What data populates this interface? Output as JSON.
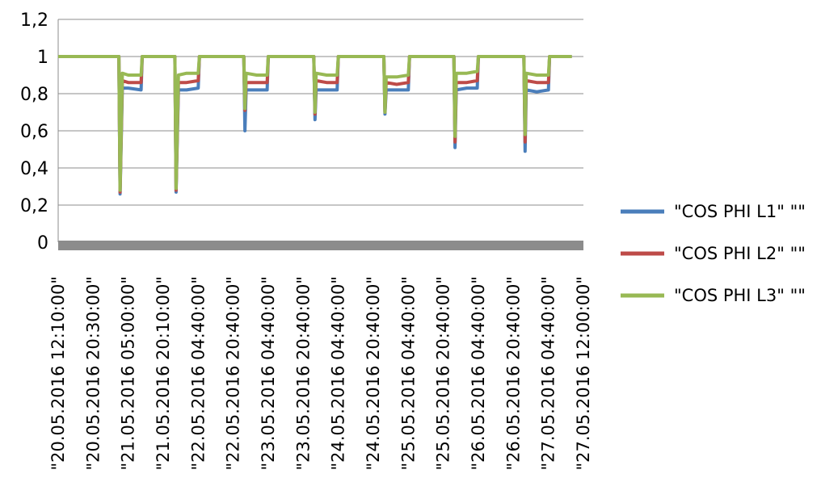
{
  "chart_data": {
    "type": "line",
    "title": "",
    "xlabel": "",
    "ylabel": "",
    "ylim": [
      0,
      1.2
    ],
    "yticks": [
      {
        "value": 0,
        "label": "0"
      },
      {
        "value": 0.2,
        "label": "0,2"
      },
      {
        "value": 0.4,
        "label": "0,4"
      },
      {
        "value": 0.6,
        "label": "0,6"
      },
      {
        "value": 0.8,
        "label": "0,8"
      },
      {
        "value": 1.0,
        "label": "1"
      },
      {
        "value": 1.2,
        "label": "1,2"
      }
    ],
    "x_tick_labels": [
      "\"20.05.2016 12:10:00\"",
      "\"20.05.2016 20:30:00\"",
      "\"21.05.2016 05:00:00\"",
      "\"21.05.2016 20:10:00\"",
      "\"22.05.2016 04:40:00\"",
      "\"22.05.2016 20:40:00\"",
      "\"23.05.2016 04:40:00\"",
      "\"23.05.2016 20:40:00\"",
      "\"24.05.2016 04:40:00\"",
      "\"24.05.2016 20:40:00\"",
      "\"25.05.2016 04:40:00\"",
      "\"25.05.2016 20:40:00\"",
      "\"26.05.2016 04:40:00\"",
      "\"26.05.2016 20:40:00\"",
      "\"27.05.2016 04:40:00\"",
      "\"27.05.2016 12:00:00\""
    ],
    "grid": true,
    "legend_position": "right",
    "series": [
      {
        "name": "\"COS PHI L1\" \"\"",
        "color": "#4a7ebb",
        "points": [
          [
            0,
            1
          ],
          [
            2.6,
            1
          ],
          [
            2.65,
            0.26
          ],
          [
            2.75,
            0.83
          ],
          [
            3.0,
            0.83
          ],
          [
            3.55,
            0.82
          ],
          [
            3.6,
            1
          ],
          [
            5.0,
            1
          ],
          [
            5.05,
            0.27
          ],
          [
            5.15,
            0.82
          ],
          [
            5.5,
            0.82
          ],
          [
            6.0,
            0.83
          ],
          [
            6.05,
            1
          ],
          [
            7.95,
            1
          ],
          [
            8.0,
            0.6
          ],
          [
            8.05,
            0.82
          ],
          [
            8.5,
            0.82
          ],
          [
            8.95,
            0.82
          ],
          [
            9.0,
            1
          ],
          [
            10.95,
            1
          ],
          [
            11.0,
            0.66
          ],
          [
            11.05,
            0.82
          ],
          [
            11.5,
            0.82
          ],
          [
            11.95,
            0.82
          ],
          [
            12.0,
            1
          ],
          [
            13.95,
            1
          ],
          [
            14.0,
            0.69
          ],
          [
            14.05,
            0.82
          ],
          [
            14.5,
            0.82
          ],
          [
            15.0,
            0.82
          ],
          [
            15.05,
            1
          ],
          [
            16.95,
            1
          ],
          [
            17.0,
            0.51
          ],
          [
            17.05,
            0.82
          ],
          [
            17.5,
            0.83
          ],
          [
            17.95,
            0.83
          ],
          [
            18.0,
            1
          ],
          [
            19.95,
            1
          ],
          [
            20.0,
            0.49
          ],
          [
            20.05,
            0.82
          ],
          [
            20.5,
            0.81
          ],
          [
            21.0,
            0.82
          ],
          [
            21.05,
            1
          ],
          [
            22.0,
            1
          ]
        ]
      },
      {
        "name": "\"COS PHI L2\" \"\"",
        "color": "#be4b48",
        "points": [
          [
            0,
            1
          ],
          [
            2.6,
            1
          ],
          [
            2.65,
            0.27
          ],
          [
            2.75,
            0.87
          ],
          [
            3.0,
            0.86
          ],
          [
            3.55,
            0.86
          ],
          [
            3.6,
            1
          ],
          [
            5.0,
            1
          ],
          [
            5.05,
            0.28
          ],
          [
            5.15,
            0.86
          ],
          [
            5.5,
            0.86
          ],
          [
            6.0,
            0.87
          ],
          [
            6.05,
            1
          ],
          [
            7.95,
            1
          ],
          [
            8.0,
            0.71
          ],
          [
            8.05,
            0.86
          ],
          [
            8.5,
            0.86
          ],
          [
            8.95,
            0.86
          ],
          [
            9.0,
            1
          ],
          [
            10.95,
            1
          ],
          [
            11.0,
            0.69
          ],
          [
            11.05,
            0.87
          ],
          [
            11.5,
            0.86
          ],
          [
            11.95,
            0.86
          ],
          [
            12.0,
            1
          ],
          [
            13.95,
            1
          ],
          [
            14.0,
            0.7
          ],
          [
            14.05,
            0.86
          ],
          [
            14.5,
            0.85
          ],
          [
            15.0,
            0.86
          ],
          [
            15.05,
            1
          ],
          [
            16.95,
            1
          ],
          [
            17.0,
            0.54
          ],
          [
            17.05,
            0.86
          ],
          [
            17.5,
            0.86
          ],
          [
            17.95,
            0.87
          ],
          [
            18.0,
            1
          ],
          [
            19.95,
            1
          ],
          [
            20.0,
            0.54
          ],
          [
            20.05,
            0.87
          ],
          [
            20.5,
            0.86
          ],
          [
            21.0,
            0.86
          ],
          [
            21.05,
            1
          ],
          [
            22.0,
            1
          ]
        ]
      },
      {
        "name": "\"COS PHI L3\" \"\"",
        "color": "#98b954",
        "points": [
          [
            0,
            1
          ],
          [
            2.6,
            1
          ],
          [
            2.65,
            0.28
          ],
          [
            2.75,
            0.91
          ],
          [
            3.0,
            0.9
          ],
          [
            3.55,
            0.9
          ],
          [
            3.6,
            1
          ],
          [
            5.0,
            1
          ],
          [
            5.05,
            0.29
          ],
          [
            5.15,
            0.9
          ],
          [
            5.5,
            0.91
          ],
          [
            6.0,
            0.91
          ],
          [
            6.05,
            1
          ],
          [
            7.95,
            1
          ],
          [
            8.0,
            0.72
          ],
          [
            8.05,
            0.91
          ],
          [
            8.5,
            0.9
          ],
          [
            8.95,
            0.9
          ],
          [
            9.0,
            1
          ],
          [
            10.95,
            1
          ],
          [
            11.0,
            0.7
          ],
          [
            11.05,
            0.91
          ],
          [
            11.5,
            0.9
          ],
          [
            11.95,
            0.9
          ],
          [
            12.0,
            1
          ],
          [
            13.95,
            1
          ],
          [
            14.0,
            0.7
          ],
          [
            14.05,
            0.89
          ],
          [
            14.5,
            0.89
          ],
          [
            15.0,
            0.9
          ],
          [
            15.05,
            1
          ],
          [
            16.95,
            1
          ],
          [
            17.0,
            0.57
          ],
          [
            17.05,
            0.91
          ],
          [
            17.5,
            0.91
          ],
          [
            17.95,
            0.92
          ],
          [
            18.0,
            1
          ],
          [
            19.95,
            1
          ],
          [
            20.0,
            0.58
          ],
          [
            20.05,
            0.91
          ],
          [
            20.5,
            0.9
          ],
          [
            21.0,
            0.9
          ],
          [
            21.05,
            1
          ],
          [
            22.0,
            1
          ]
        ]
      }
    ]
  }
}
